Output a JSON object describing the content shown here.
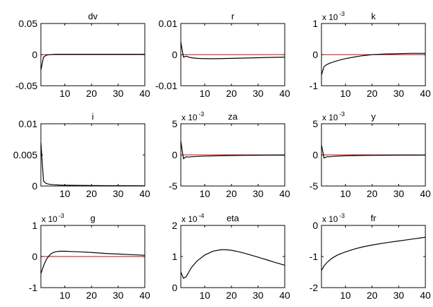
{
  "chart_data": [
    {
      "type": "line",
      "title": "dv",
      "xlabel": "",
      "ylabel": "",
      "xlim": [
        1,
        40
      ],
      "xticks": [
        10,
        20,
        30,
        40
      ],
      "xticklabels": [
        "10",
        "20",
        "30",
        "40"
      ],
      "ylim": [
        -0.05,
        0.05
      ],
      "yticks": [
        -0.05,
        0,
        0.05
      ],
      "yticklabels": [
        "-0.05",
        "0",
        "0.05"
      ],
      "exponent_label": null,
      "zero_line": true,
      "series": [
        {
          "x": [
            1,
            2,
            3,
            4,
            5,
            6,
            7,
            8,
            10,
            15,
            20,
            25,
            30,
            35,
            40
          ],
          "values": [
            -0.025,
            -0.004,
            -0.001,
            0.0,
            0.0,
            0.0005,
            0.0005,
            0.0005,
            0.0005,
            0.0005,
            0.0005,
            0.0005,
            0.0005,
            0.0005,
            0.0005
          ]
        }
      ]
    },
    {
      "type": "line",
      "title": "r",
      "xlabel": "",
      "ylabel": "",
      "xlim": [
        1,
        40
      ],
      "xticks": [
        10,
        20,
        30,
        40
      ],
      "xticklabels": [
        "10",
        "20",
        "30",
        "40"
      ],
      "ylim": [
        -0.01,
        0.01
      ],
      "yticks": [
        -0.01,
        0,
        0.01
      ],
      "yticklabels": [
        "-0.01",
        "0",
        "0.01"
      ],
      "exponent_label": null,
      "zero_line": true,
      "series": [
        {
          "x": [
            1,
            2,
            3,
            4,
            5,
            7,
            10,
            15,
            20,
            25,
            30,
            35,
            40
          ],
          "values": [
            0.004,
            -0.0008,
            -0.0005,
            -0.0008,
            -0.001,
            -0.0012,
            -0.0013,
            -0.0013,
            -0.0012,
            -0.0011,
            -0.001,
            -0.0009,
            -0.0008
          ]
        }
      ]
    },
    {
      "type": "line",
      "title": "k",
      "xlabel": "",
      "ylabel": "",
      "xlim": [
        1,
        40
      ],
      "xticks": [
        10,
        20,
        30,
        40
      ],
      "xticklabels": [
        "10",
        "20",
        "30",
        "40"
      ],
      "ylim": [
        -1,
        1
      ],
      "yticks": [
        -1,
        0,
        1
      ],
      "yticklabels": [
        "-1",
        "0",
        "1"
      ],
      "exponent_label": {
        "base": "x 10",
        "power": "-3"
      },
      "zero_line": true,
      "series": [
        {
          "x": [
            1,
            2,
            3,
            4,
            6,
            8,
            10,
            13,
            16,
            20,
            25,
            30,
            35,
            40
          ],
          "values": [
            -0.65,
            -0.38,
            -0.32,
            -0.28,
            -0.22,
            -0.17,
            -0.13,
            -0.08,
            -0.04,
            0.0,
            0.02,
            0.03,
            0.04,
            0.04
          ]
        }
      ]
    },
    {
      "type": "line",
      "title": "i",
      "xlabel": "",
      "ylabel": "",
      "xlim": [
        1,
        40
      ],
      "xticks": [
        10,
        20,
        30,
        40
      ],
      "xticklabels": [
        "10",
        "20",
        "30",
        "40"
      ],
      "ylim": [
        0,
        0.01
      ],
      "yticks": [
        0,
        0.005,
        0.01
      ],
      "yticklabels": [
        "0",
        "0.005",
        "0.01"
      ],
      "exponent_label": null,
      "zero_line": false,
      "series": [
        {
          "x": [
            1,
            2,
            3,
            4,
            5,
            6,
            8,
            10,
            15,
            20,
            25,
            30,
            35,
            40
          ],
          "values": [
            0.007,
            0.0008,
            0.0004,
            0.0003,
            0.00025,
            0.0002,
            0.00016,
            0.00013,
            0.0001,
            8e-05,
            6e-05,
            5e-05,
            4e-05,
            3e-05
          ]
        }
      ]
    },
    {
      "type": "line",
      "title": "za",
      "xlabel": "",
      "ylabel": "",
      "xlim": [
        1,
        40
      ],
      "xticks": [
        10,
        20,
        30,
        40
      ],
      "xticklabels": [
        "10",
        "20",
        "30",
        "40"
      ],
      "ylim": [
        -5,
        5
      ],
      "yticks": [
        -5,
        0,
        5
      ],
      "yticklabels": [
        "-5",
        "0",
        "5"
      ],
      "exponent_label": {
        "base": "x 10",
        "power": "-3"
      },
      "zero_line": true,
      "series": [
        {
          "x": [
            1,
            2,
            3,
            4,
            5,
            7,
            10,
            15,
            20,
            25,
            30,
            35,
            40
          ],
          "values": [
            2.2,
            -0.6,
            -0.3,
            -0.35,
            -0.3,
            -0.25,
            -0.2,
            -0.15,
            -0.1,
            -0.08,
            -0.06,
            -0.05,
            -0.04
          ]
        }
      ]
    },
    {
      "type": "line",
      "title": "y",
      "xlabel": "",
      "ylabel": "",
      "xlim": [
        1,
        40
      ],
      "xticks": [
        10,
        20,
        30,
        40
      ],
      "xticklabels": [
        "10",
        "20",
        "30",
        "40"
      ],
      "ylim": [
        -5,
        5
      ],
      "yticks": [
        -5,
        0,
        5
      ],
      "yticklabels": [
        "-5",
        "0",
        "5"
      ],
      "exponent_label": {
        "base": "x 10",
        "power": "-3"
      },
      "zero_line": true,
      "series": [
        {
          "x": [
            1,
            2,
            3,
            4,
            5,
            7,
            10,
            15,
            20,
            25,
            30,
            35,
            40
          ],
          "values": [
            1.6,
            -0.5,
            -0.3,
            -0.3,
            -0.25,
            -0.2,
            -0.15,
            -0.1,
            -0.08,
            -0.06,
            -0.05,
            -0.04,
            -0.03
          ]
        }
      ]
    },
    {
      "type": "line",
      "title": "g",
      "xlabel": "",
      "ylabel": "",
      "xlim": [
        1,
        40
      ],
      "xticks": [
        10,
        20,
        30,
        40
      ],
      "xticklabels": [
        "10",
        "20",
        "30",
        "40"
      ],
      "ylim": [
        -1,
        1
      ],
      "yticks": [
        -1,
        0,
        1
      ],
      "yticklabels": [
        "-1",
        "0",
        "1"
      ],
      "exponent_label": {
        "base": "x 10",
        "power": "-3"
      },
      "zero_line": true,
      "series": [
        {
          "x": [
            1,
            2,
            3,
            4,
            5,
            6,
            7,
            8,
            10,
            13,
            16,
            20,
            25,
            30,
            35,
            40
          ],
          "values": [
            -0.55,
            -0.3,
            -0.1,
            0.02,
            0.1,
            0.14,
            0.16,
            0.17,
            0.17,
            0.16,
            0.15,
            0.13,
            0.1,
            0.08,
            0.06,
            0.04
          ]
        }
      ]
    },
    {
      "type": "line",
      "title": "eta",
      "xlabel": "",
      "ylabel": "",
      "xlim": [
        1,
        40
      ],
      "xticks": [
        10,
        20,
        30,
        40
      ],
      "xticklabels": [
        "10",
        "20",
        "30",
        "40"
      ],
      "ylim": [
        0,
        2
      ],
      "yticks": [
        0,
        1,
        2
      ],
      "yticklabels": [
        "0",
        "1",
        "2"
      ],
      "exponent_label": {
        "base": "x 10",
        "power": "-4"
      },
      "zero_line": false,
      "series": [
        {
          "x": [
            1,
            2,
            3,
            4,
            5,
            7,
            10,
            13,
            16,
            18,
            20,
            23,
            26,
            30,
            33,
            36,
            40
          ],
          "values": [
            0.5,
            0.3,
            0.35,
            0.5,
            0.65,
            0.85,
            1.05,
            1.17,
            1.22,
            1.22,
            1.2,
            1.15,
            1.08,
            0.98,
            0.9,
            0.82,
            0.72
          ]
        }
      ]
    },
    {
      "type": "line",
      "title": "fr",
      "xlabel": "",
      "ylabel": "",
      "xlim": [
        1,
        40
      ],
      "xticks": [
        10,
        20,
        30,
        40
      ],
      "xticklabels": [
        "10",
        "20",
        "30",
        "40"
      ],
      "ylim": [
        -2,
        0
      ],
      "yticks": [
        -2,
        -1,
        0
      ],
      "yticklabels": [
        "-2",
        "-1",
        "0"
      ],
      "exponent_label": {
        "base": "x 10",
        "power": "-3"
      },
      "zero_line": false,
      "series": [
        {
          "x": [
            1,
            2,
            3,
            4,
            5,
            7,
            10,
            13,
            16,
            20,
            25,
            30,
            35,
            40
          ],
          "values": [
            -1.45,
            -1.3,
            -1.2,
            -1.12,
            -1.05,
            -0.95,
            -0.85,
            -0.77,
            -0.7,
            -0.63,
            -0.56,
            -0.5,
            -0.44,
            -0.38
          ]
        }
      ]
    }
  ],
  "colors": {
    "axes": "#000000",
    "series": "#000000",
    "zero_line": "#d00000"
  }
}
